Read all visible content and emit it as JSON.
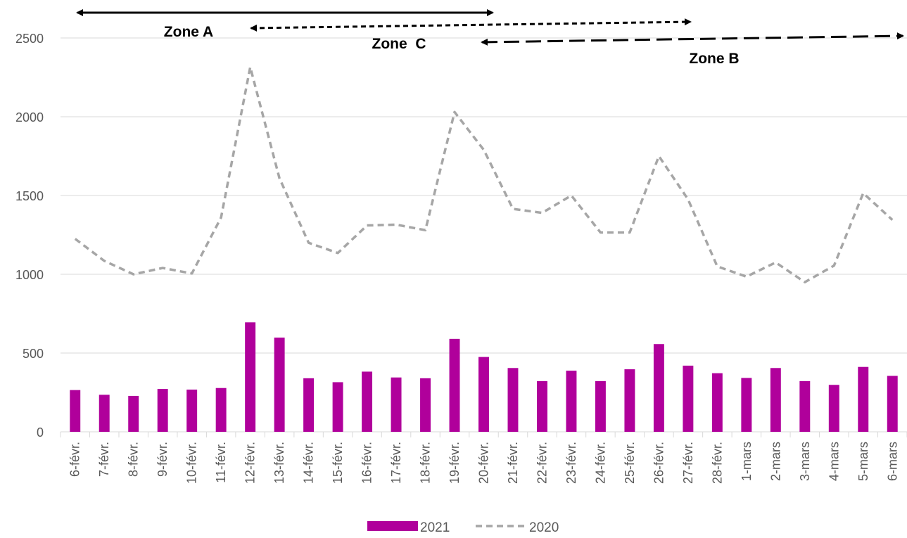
{
  "chart_data": {
    "type": "bar",
    "categories": [
      "6-févr.",
      "7-févr.",
      "8-févr.",
      "9-févr.",
      "10-févr.",
      "11-févr.",
      "12-févr.",
      "13-févr.",
      "14-févr.",
      "15-févr.",
      "16-févr.",
      "17-févr.",
      "18-févr.",
      "19-févr.",
      "20-févr.",
      "21-févr.",
      "22-févr.",
      "23-févr.",
      "24-févr.",
      "25-févr.",
      "26-févr.",
      "27-févr.",
      "28-févr.",
      "1-mars",
      "2-mars",
      "3-mars",
      "4-mars",
      "5-mars",
      "6-mars"
    ],
    "series": [
      {
        "name": "2021",
        "type": "bar",
        "color": "#b0009b",
        "values": [
          265,
          235,
          228,
          272,
          268,
          278,
          695,
          598,
          340,
          315,
          382,
          345,
          340,
          590,
          475,
          405,
          322,
          388,
          322,
          397,
          557,
          420,
          372,
          342,
          405,
          322,
          298,
          412,
          355
        ]
      },
      {
        "name": "2020",
        "type": "line",
        "style": "dashed",
        "color": "#a6a6a6",
        "values": [
          1225,
          1085,
          1000,
          1040,
          1005,
          1360,
          2315,
          1610,
          1200,
          1135,
          1310,
          1315,
          1280,
          2030,
          1790,
          1415,
          1390,
          1500,
          1265,
          1265,
          1750,
          1475,
          1050,
          985,
          1075,
          950,
          1055,
          1515,
          1345
        ]
      }
    ],
    "ylim": [
      0,
      2500
    ],
    "yticks": [
      0,
      500,
      1000,
      1500,
      2000,
      2500
    ],
    "grid": true,
    "legend_position": "bottom",
    "annotations": [
      {
        "label": "Zone A",
        "from": "6-févr.",
        "to": "21-févr.",
        "style": "solid"
      },
      {
        "label": "Zone  C",
        "from": "12-févr.",
        "to": "27-févr.",
        "style": "dotted"
      },
      {
        "label": "Zone B",
        "from": "20-févr.",
        "to": "6-mars",
        "style": "long-dash"
      }
    ]
  }
}
